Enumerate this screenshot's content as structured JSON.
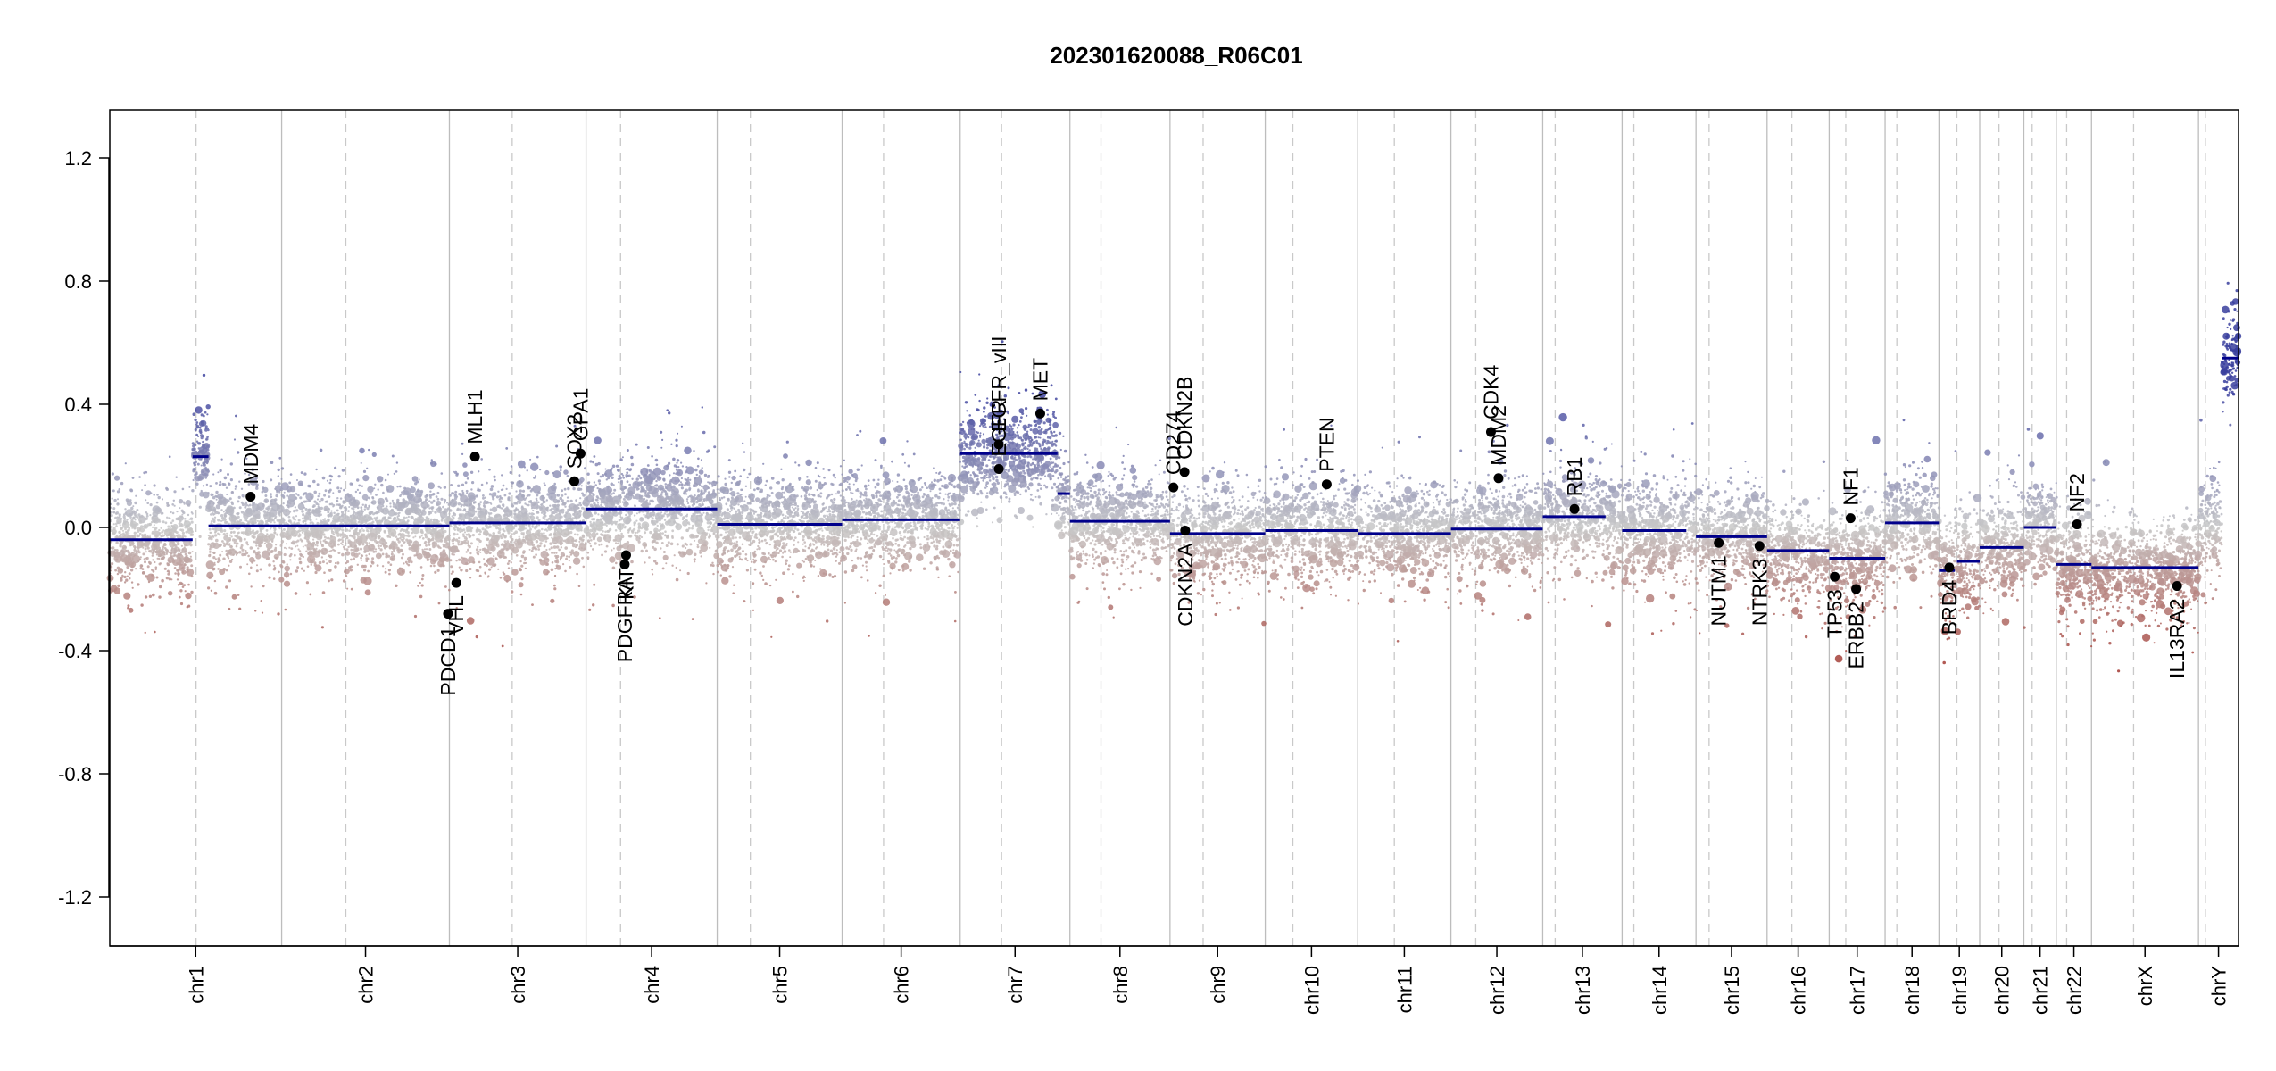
{
  "chart_data": {
    "type": "scatter",
    "title": "202301620088_R06C01",
    "xlabel": "",
    "ylabel": "",
    "ylim": [
      -1.35,
      1.35
    ],
    "y_ticks": [
      "1.2",
      "0.8",
      "0.4",
      "0.0",
      "-0.4",
      "-0.8",
      "-1.2"
    ],
    "y_tick_values": [
      1.2,
      0.8,
      0.4,
      0.0,
      -0.4,
      -0.8,
      -1.2
    ],
    "grid": false,
    "colors": {
      "gain": "#3a3f9e",
      "neutral": "#c8c8c8",
      "loss": "#a33a32",
      "segment": "#00008b",
      "gene": "#000000",
      "separator": "#bdbdbd"
    },
    "chromosomes": [
      {
        "name": "chr1",
        "start": 0,
        "end": 249,
        "centromere": 125,
        "segments": [
          {
            "s": 0,
            "e": 120,
            "v": -0.04
          },
          {
            "s": 120,
            "e": 143,
            "v": 0.23
          },
          {
            "s": 143,
            "e": 249,
            "v": 0.005
          }
        ]
      },
      {
        "name": "chr2",
        "start": 249,
        "end": 492,
        "centromere": 342,
        "segments": [
          {
            "s": 249,
            "e": 492,
            "v": 0.005
          }
        ]
      },
      {
        "name": "chr3",
        "start": 492,
        "end": 690,
        "centromere": 583,
        "segments": [
          {
            "s": 492,
            "e": 690,
            "v": 0.015
          }
        ]
      },
      {
        "name": "chr4",
        "start": 690,
        "end": 880,
        "centromere": 740,
        "segments": [
          {
            "s": 690,
            "e": 880,
            "v": 0.06
          }
        ]
      },
      {
        "name": "chr5",
        "start": 880,
        "end": 1061,
        "centromere": 928,
        "segments": [
          {
            "s": 880,
            "e": 1061,
            "v": 0.01
          }
        ]
      },
      {
        "name": "chr6",
        "start": 1061,
        "end": 1232,
        "centromere": 1121,
        "segments": [
          {
            "s": 1061,
            "e": 1232,
            "v": 0.025
          }
        ]
      },
      {
        "name": "chr7",
        "start": 1232,
        "end": 1391,
        "centromere": 1292,
        "segments": [
          {
            "s": 1232,
            "e": 1373,
            "v": 0.24
          },
          {
            "s": 1373,
            "e": 1391,
            "v": 0.11
          }
        ]
      },
      {
        "name": "chr8",
        "start": 1391,
        "end": 1536,
        "centromere": 1436,
        "segments": [
          {
            "s": 1391,
            "e": 1536,
            "v": 0.02
          }
        ]
      },
      {
        "name": "chr9",
        "start": 1536,
        "end": 1674,
        "centromere": 1584,
        "segments": [
          {
            "s": 1536,
            "e": 1674,
            "v": -0.02
          }
        ]
      },
      {
        "name": "chr10",
        "start": 1674,
        "end": 1808,
        "centromere": 1714,
        "segments": [
          {
            "s": 1674,
            "e": 1808,
            "v": -0.01
          }
        ]
      },
      {
        "name": "chr11",
        "start": 1808,
        "end": 1943,
        "centromere": 1861,
        "segments": [
          {
            "s": 1808,
            "e": 1943,
            "v": -0.02
          }
        ]
      },
      {
        "name": "chr12",
        "start": 1943,
        "end": 2076,
        "centromere": 1979,
        "segments": [
          {
            "s": 1943,
            "e": 2076,
            "v": -0.005
          }
        ]
      },
      {
        "name": "chr13",
        "start": 2076,
        "end": 2191,
        "centromere": 2094,
        "segments": [
          {
            "s": 2076,
            "e": 2167,
            "v": 0.035
          }
        ]
      },
      {
        "name": "chr14",
        "start": 2191,
        "end": 2298,
        "centromere": 2208,
        "segments": [
          {
            "s": 2191,
            "e": 2284,
            "v": -0.01
          }
        ]
      },
      {
        "name": "chr15",
        "start": 2298,
        "end": 2401,
        "centromere": 2317,
        "segments": [
          {
            "s": 2298,
            "e": 2401,
            "v": -0.03
          }
        ]
      },
      {
        "name": "chr16",
        "start": 2401,
        "end": 2491,
        "centromere": 2437,
        "segments": [
          {
            "s": 2401,
            "e": 2491,
            "v": -0.075
          }
        ]
      },
      {
        "name": "chr17",
        "start": 2491,
        "end": 2572,
        "centromere": 2515,
        "segments": [
          {
            "s": 2491,
            "e": 2572,
            "v": -0.1
          }
        ]
      },
      {
        "name": "chr18",
        "start": 2572,
        "end": 2650,
        "centromere": 2589,
        "segments": [
          {
            "s": 2572,
            "e": 2650,
            "v": 0.015
          }
        ]
      },
      {
        "name": "chr19",
        "start": 2650,
        "end": 2709,
        "centromere": 2676,
        "segments": [
          {
            "s": 2650,
            "e": 2673,
            "v": -0.14
          },
          {
            "s": 2676,
            "e": 2709,
            "v": -0.11
          }
        ]
      },
      {
        "name": "chr20",
        "start": 2709,
        "end": 2773,
        "centromere": 2737,
        "segments": [
          {
            "s": 2709,
            "e": 2773,
            "v": -0.065
          }
        ]
      },
      {
        "name": "chr21",
        "start": 2773,
        "end": 2820,
        "centromere": 2785,
        "segments": [
          {
            "s": 2773,
            "e": 2820,
            "v": 0.0
          }
        ]
      },
      {
        "name": "chr22",
        "start": 2820,
        "end": 2871,
        "centromere": 2835,
        "segments": [
          {
            "s": 2820,
            "e": 2871,
            "v": -0.12
          }
        ]
      },
      {
        "name": "chrX",
        "start": 2871,
        "end": 3026,
        "centromere": 2932,
        "segments": [
          {
            "s": 2871,
            "e": 3026,
            "v": -0.13
          }
        ]
      },
      {
        "name": "chrY",
        "start": 3026,
        "end": 3084,
        "centromere": 3036,
        "segments": [
          {
            "s": 3060,
            "e": 3084,
            "v": 0.55
          }
        ]
      }
    ],
    "genes": [
      {
        "name": "MDM4",
        "x": 204,
        "y": 0.1,
        "label_side": "up"
      },
      {
        "name": "PDCD1",
        "x": 490,
        "y": -0.28,
        "label_side": "down"
      },
      {
        "name": "VHL",
        "x": 502,
        "y": -0.18,
        "label_side": "down"
      },
      {
        "name": "MLH1",
        "x": 529,
        "y": 0.23,
        "label_side": "up"
      },
      {
        "name": "SOX2",
        "x": 673,
        "y": 0.15,
        "label_side": "up"
      },
      {
        "name": "GPA1",
        "x": 682,
        "y": 0.24,
        "label_side": "up"
      },
      {
        "name": "PDGFRA",
        "x": 746,
        "y": -0.12,
        "label_side": "down"
      },
      {
        "name": "KIT",
        "x": 748,
        "y": -0.09,
        "label_side": "down"
      },
      {
        "name": "EGFR_vIII",
        "x": 1288,
        "y": 0.27,
        "label_side": "up"
      },
      {
        "name": "EGFR",
        "x": 1288,
        "y": 0.19,
        "label_side": "up"
      },
      {
        "name": "MET",
        "x": 1348,
        "y": 0.37,
        "label_side": "up"
      },
      {
        "name": "CD274",
        "x": 1541,
        "y": 0.13,
        "label_side": "up"
      },
      {
        "name": "CDKN2B",
        "x": 1557,
        "y": 0.18,
        "label_side": "up"
      },
      {
        "name": "CDKN2A",
        "x": 1558,
        "y": -0.01,
        "label_side": "down"
      },
      {
        "name": "PTEN",
        "x": 1763,
        "y": 0.14,
        "label_side": "up"
      },
      {
        "name": "CDK4",
        "x": 2001,
        "y": 0.31,
        "label_side": "up"
      },
      {
        "name": "MDM2",
        "x": 2012,
        "y": 0.16,
        "label_side": "up"
      },
      {
        "name": "RB1",
        "x": 2122,
        "y": 0.06,
        "label_side": "up"
      },
      {
        "name": "NUTM1",
        "x": 2331,
        "y": -0.05,
        "label_side": "down"
      },
      {
        "name": "NTRK3",
        "x": 2390,
        "y": -0.06,
        "label_side": "down"
      },
      {
        "name": "TP53",
        "x": 2499,
        "y": -0.16,
        "label_side": "down"
      },
      {
        "name": "NF1",
        "x": 2522,
        "y": 0.03,
        "label_side": "up"
      },
      {
        "name": "ERBB2",
        "x": 2530,
        "y": -0.2,
        "label_side": "down"
      },
      {
        "name": "BRD4",
        "x": 2665,
        "y": -0.13,
        "label_side": "down"
      },
      {
        "name": "NF2",
        "x": 2850,
        "y": 0.01,
        "label_side": "up"
      },
      {
        "name": "IL13RA2",
        "x": 2995,
        "y": -0.19,
        "label_side": "down"
      }
    ]
  }
}
